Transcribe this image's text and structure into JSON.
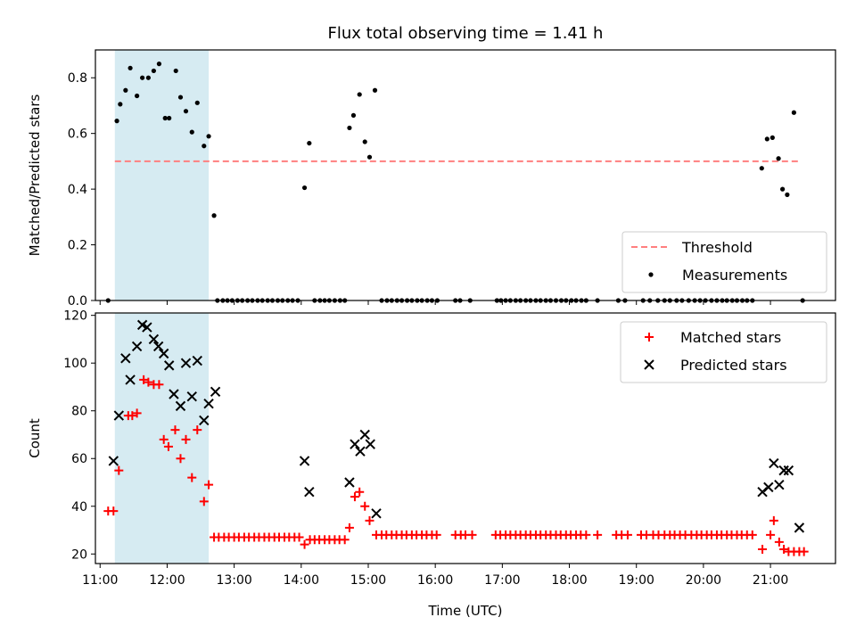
{
  "chart_data": {
    "type": "scatter",
    "title": "Flux total observing time = 1.41 h",
    "xlabel": "Time (UTC)",
    "x_unit": "hours UTC",
    "x_ticks": [
      11,
      12,
      13,
      14,
      15,
      16,
      17,
      18,
      19,
      20,
      21
    ],
    "x_tick_labels": [
      "11:00",
      "12:00",
      "13:00",
      "14:00",
      "15:00",
      "16:00",
      "17:00",
      "18:00",
      "19:00",
      "20:00",
      "21:00"
    ],
    "xlim": [
      10.93,
      21.97
    ],
    "shaded_interval": {
      "x": [
        11.22,
        12.62
      ],
      "color": "#add8e6"
    },
    "panels": [
      {
        "ylabel": "Matched/Predicted stars",
        "ylim": [
          0,
          0.9
        ],
        "y_ticks": [
          0,
          0.2,
          0.4,
          0.6,
          0.8
        ],
        "y_tick_labels": [
          "0.0",
          "0.2",
          "0.4",
          "0.6",
          "0.8"
        ],
        "legend_position": "lower-right",
        "legend": [
          {
            "label": "Threshold",
            "marker": "dashed-line",
            "color": "#ff7f7f"
          },
          {
            "label": "Measurements",
            "marker": "dot",
            "color": "#000000"
          }
        ],
        "threshold": {
          "y": 0.5,
          "x": [
            11.22,
            21.42
          ],
          "color": "#ff7f7f"
        },
        "measurements": {
          "x": [
            11.12,
            11.25,
            11.3,
            11.38,
            11.45,
            11.55,
            11.63,
            11.72,
            11.8,
            11.88,
            11.97,
            12.03,
            12.13,
            12.2,
            12.28,
            12.37,
            12.45,
            12.55,
            12.62,
            12.7,
            14.05,
            14.12,
            14.72,
            14.78,
            14.87,
            14.95,
            15.02,
            15.1,
            20.87,
            20.95,
            21.03,
            21.12,
            21.18,
            21.25,
            21.35,
            12.75,
            12.83,
            12.9,
            12.97,
            13.05,
            13.12,
            13.2,
            13.27,
            13.35,
            13.42,
            13.5,
            13.57,
            13.65,
            13.72,
            13.8,
            13.87,
            13.95,
            14.2,
            14.28,
            14.35,
            14.42,
            14.5,
            14.58,
            14.65,
            15.2,
            15.28,
            15.35,
            15.43,
            15.5,
            15.58,
            15.65,
            15.73,
            15.8,
            15.88,
            15.95,
            16.03,
            16.3,
            16.37,
            16.52,
            16.92,
            16.98,
            17.05,
            17.12,
            17.2,
            17.27,
            17.35,
            17.42,
            17.5,
            17.57,
            17.65,
            17.72,
            17.8,
            17.88,
            17.95,
            18.03,
            18.1,
            18.18,
            18.25,
            18.42,
            18.73,
            18.83,
            19.1,
            19.2,
            19.32,
            19.42,
            19.5,
            19.6,
            19.68,
            19.78,
            19.87,
            19.95,
            20.03,
            20.12,
            20.2,
            20.28,
            20.35,
            20.43,
            20.5,
            20.58,
            20.65,
            20.73,
            21.48
          ],
          "y": [
            0.0,
            0.645,
            0.705,
            0.755,
            0.835,
            0.735,
            0.8,
            0.8,
            0.825,
            0.85,
            0.655,
            0.655,
            0.825,
            0.73,
            0.68,
            0.605,
            0.71,
            0.555,
            0.59,
            0.305,
            0.405,
            0.565,
            0.62,
            0.665,
            0.74,
            0.57,
            0.515,
            0.755,
            0.475,
            0.58,
            0.585,
            0.51,
            0.4,
            0.38,
            0.675,
            0,
            0,
            0,
            0,
            0,
            0,
            0,
            0,
            0,
            0,
            0,
            0,
            0,
            0,
            0,
            0,
            0,
            0,
            0,
            0,
            0,
            0,
            0,
            0,
            0,
            0,
            0,
            0,
            0,
            0,
            0,
            0,
            0,
            0,
            0,
            0,
            0,
            0,
            0,
            0,
            0,
            0,
            0,
            0,
            0,
            0,
            0,
            0,
            0,
            0,
            0,
            0,
            0,
            0,
            0,
            0,
            0,
            0,
            0,
            0,
            0,
            0,
            0,
            0,
            0,
            0,
            0,
            0,
            0,
            0,
            0,
            0,
            0,
            0,
            0,
            0,
            0,
            0,
            0,
            0,
            0,
            0
          ]
        }
      },
      {
        "ylabel": "Count",
        "ylim": [
          16,
          121
        ],
        "y_ticks": [
          20,
          40,
          60,
          80,
          100,
          120
        ],
        "y_tick_labels": [
          "20",
          "40",
          "60",
          "80",
          "100",
          "120"
        ],
        "legend_position": "upper-right",
        "legend": [
          {
            "label": "Matched stars",
            "marker": "plus",
            "color": "#ff0000"
          },
          {
            "label": "Predicted stars",
            "marker": "x",
            "color": "#000000"
          }
        ],
        "series": [
          {
            "name": "Matched stars",
            "marker": "plus",
            "color": "#ff0000",
            "x": [
              11.12,
              11.2,
              11.28,
              11.42,
              11.48,
              11.55,
              11.65,
              11.72,
              11.8,
              11.88,
              11.95,
              12.02,
              12.12,
              12.2,
              12.28,
              12.37,
              12.45,
              12.55,
              12.62,
              12.7,
              12.77,
              12.85,
              12.92,
              13.0,
              13.07,
              13.15,
              13.22,
              13.3,
              13.37,
              13.45,
              13.52,
              13.6,
              13.67,
              13.75,
              13.82,
              13.9,
              13.97,
              14.05,
              14.13,
              14.2,
              14.27,
              14.35,
              14.42,
              14.5,
              14.57,
              14.65,
              14.72,
              14.8,
              14.87,
              14.95,
              15.02,
              15.12,
              15.2,
              15.27,
              15.35,
              15.42,
              15.5,
              15.57,
              15.65,
              15.72,
              15.8,
              15.87,
              15.95,
              16.02,
              16.3,
              16.38,
              16.45,
              16.55,
              16.9,
              16.97,
              17.05,
              17.12,
              17.2,
              17.27,
              17.35,
              17.42,
              17.5,
              17.57,
              17.65,
              17.72,
              17.8,
              17.87,
              17.95,
              18.02,
              18.1,
              18.17,
              18.25,
              18.42,
              18.7,
              18.78,
              18.87,
              19.07,
              19.15,
              19.25,
              19.33,
              19.42,
              19.5,
              19.57,
              19.65,
              19.73,
              19.82,
              19.9,
              19.97,
              20.05,
              20.12,
              20.2,
              20.27,
              20.35,
              20.42,
              20.5,
              20.57,
              20.65,
              20.73,
              20.88,
              21.0,
              21.05,
              21.13,
              21.2,
              21.27,
              21.35,
              21.43,
              21.5
            ],
            "y": [
              38,
              38,
              55,
              78,
              78,
              79,
              93,
              92,
              91,
              91,
              68,
              65,
              72,
              60,
              68,
              52,
              72,
              42,
              49,
              27,
              27,
              27,
              27,
              27,
              27,
              27,
              27,
              27,
              27,
              27,
              27,
              27,
              27,
              27,
              27,
              27,
              27,
              24,
              26,
              26,
              26,
              26,
              26,
              26,
              26,
              26,
              31,
              44,
              46,
              40,
              34,
              28,
              28,
              28,
              28,
              28,
              28,
              28,
              28,
              28,
              28,
              28,
              28,
              28,
              28,
              28,
              28,
              28,
              28,
              28,
              28,
              28,
              28,
              28,
              28,
              28,
              28,
              28,
              28,
              28,
              28,
              28,
              28,
              28,
              28,
              28,
              28,
              28,
              28,
              28,
              28,
              28,
              28,
              28,
              28,
              28,
              28,
              28,
              28,
              28,
              28,
              28,
              28,
              28,
              28,
              28,
              28,
              28,
              28,
              28,
              28,
              28,
              28,
              22,
              28,
              34,
              25,
              22,
              21,
              21,
              21,
              21
            ]
          },
          {
            "name": "Predicted stars",
            "marker": "x",
            "color": "#000000",
            "x": [
              11.2,
              11.28,
              11.38,
              11.45,
              11.55,
              11.63,
              11.7,
              11.8,
              11.87,
              11.95,
              12.03,
              12.1,
              12.2,
              12.28,
              12.37,
              12.45,
              12.55,
              12.62,
              12.72,
              14.05,
              14.12,
              14.72,
              14.8,
              14.88,
              14.95,
              15.03,
              15.12,
              20.88,
              20.97,
              21.05,
              21.13,
              21.2,
              21.27,
              21.43
            ],
            "y": [
              59,
              78,
              102,
              93,
              107,
              116,
              115,
              110,
              107,
              104,
              99,
              87,
              82,
              100,
              86,
              101,
              76,
              83,
              88,
              59,
              46,
              50,
              66,
              63,
              70,
              66,
              37,
              46,
              48,
              58,
              49,
              55,
              55,
              31
            ]
          }
        ]
      }
    ]
  }
}
